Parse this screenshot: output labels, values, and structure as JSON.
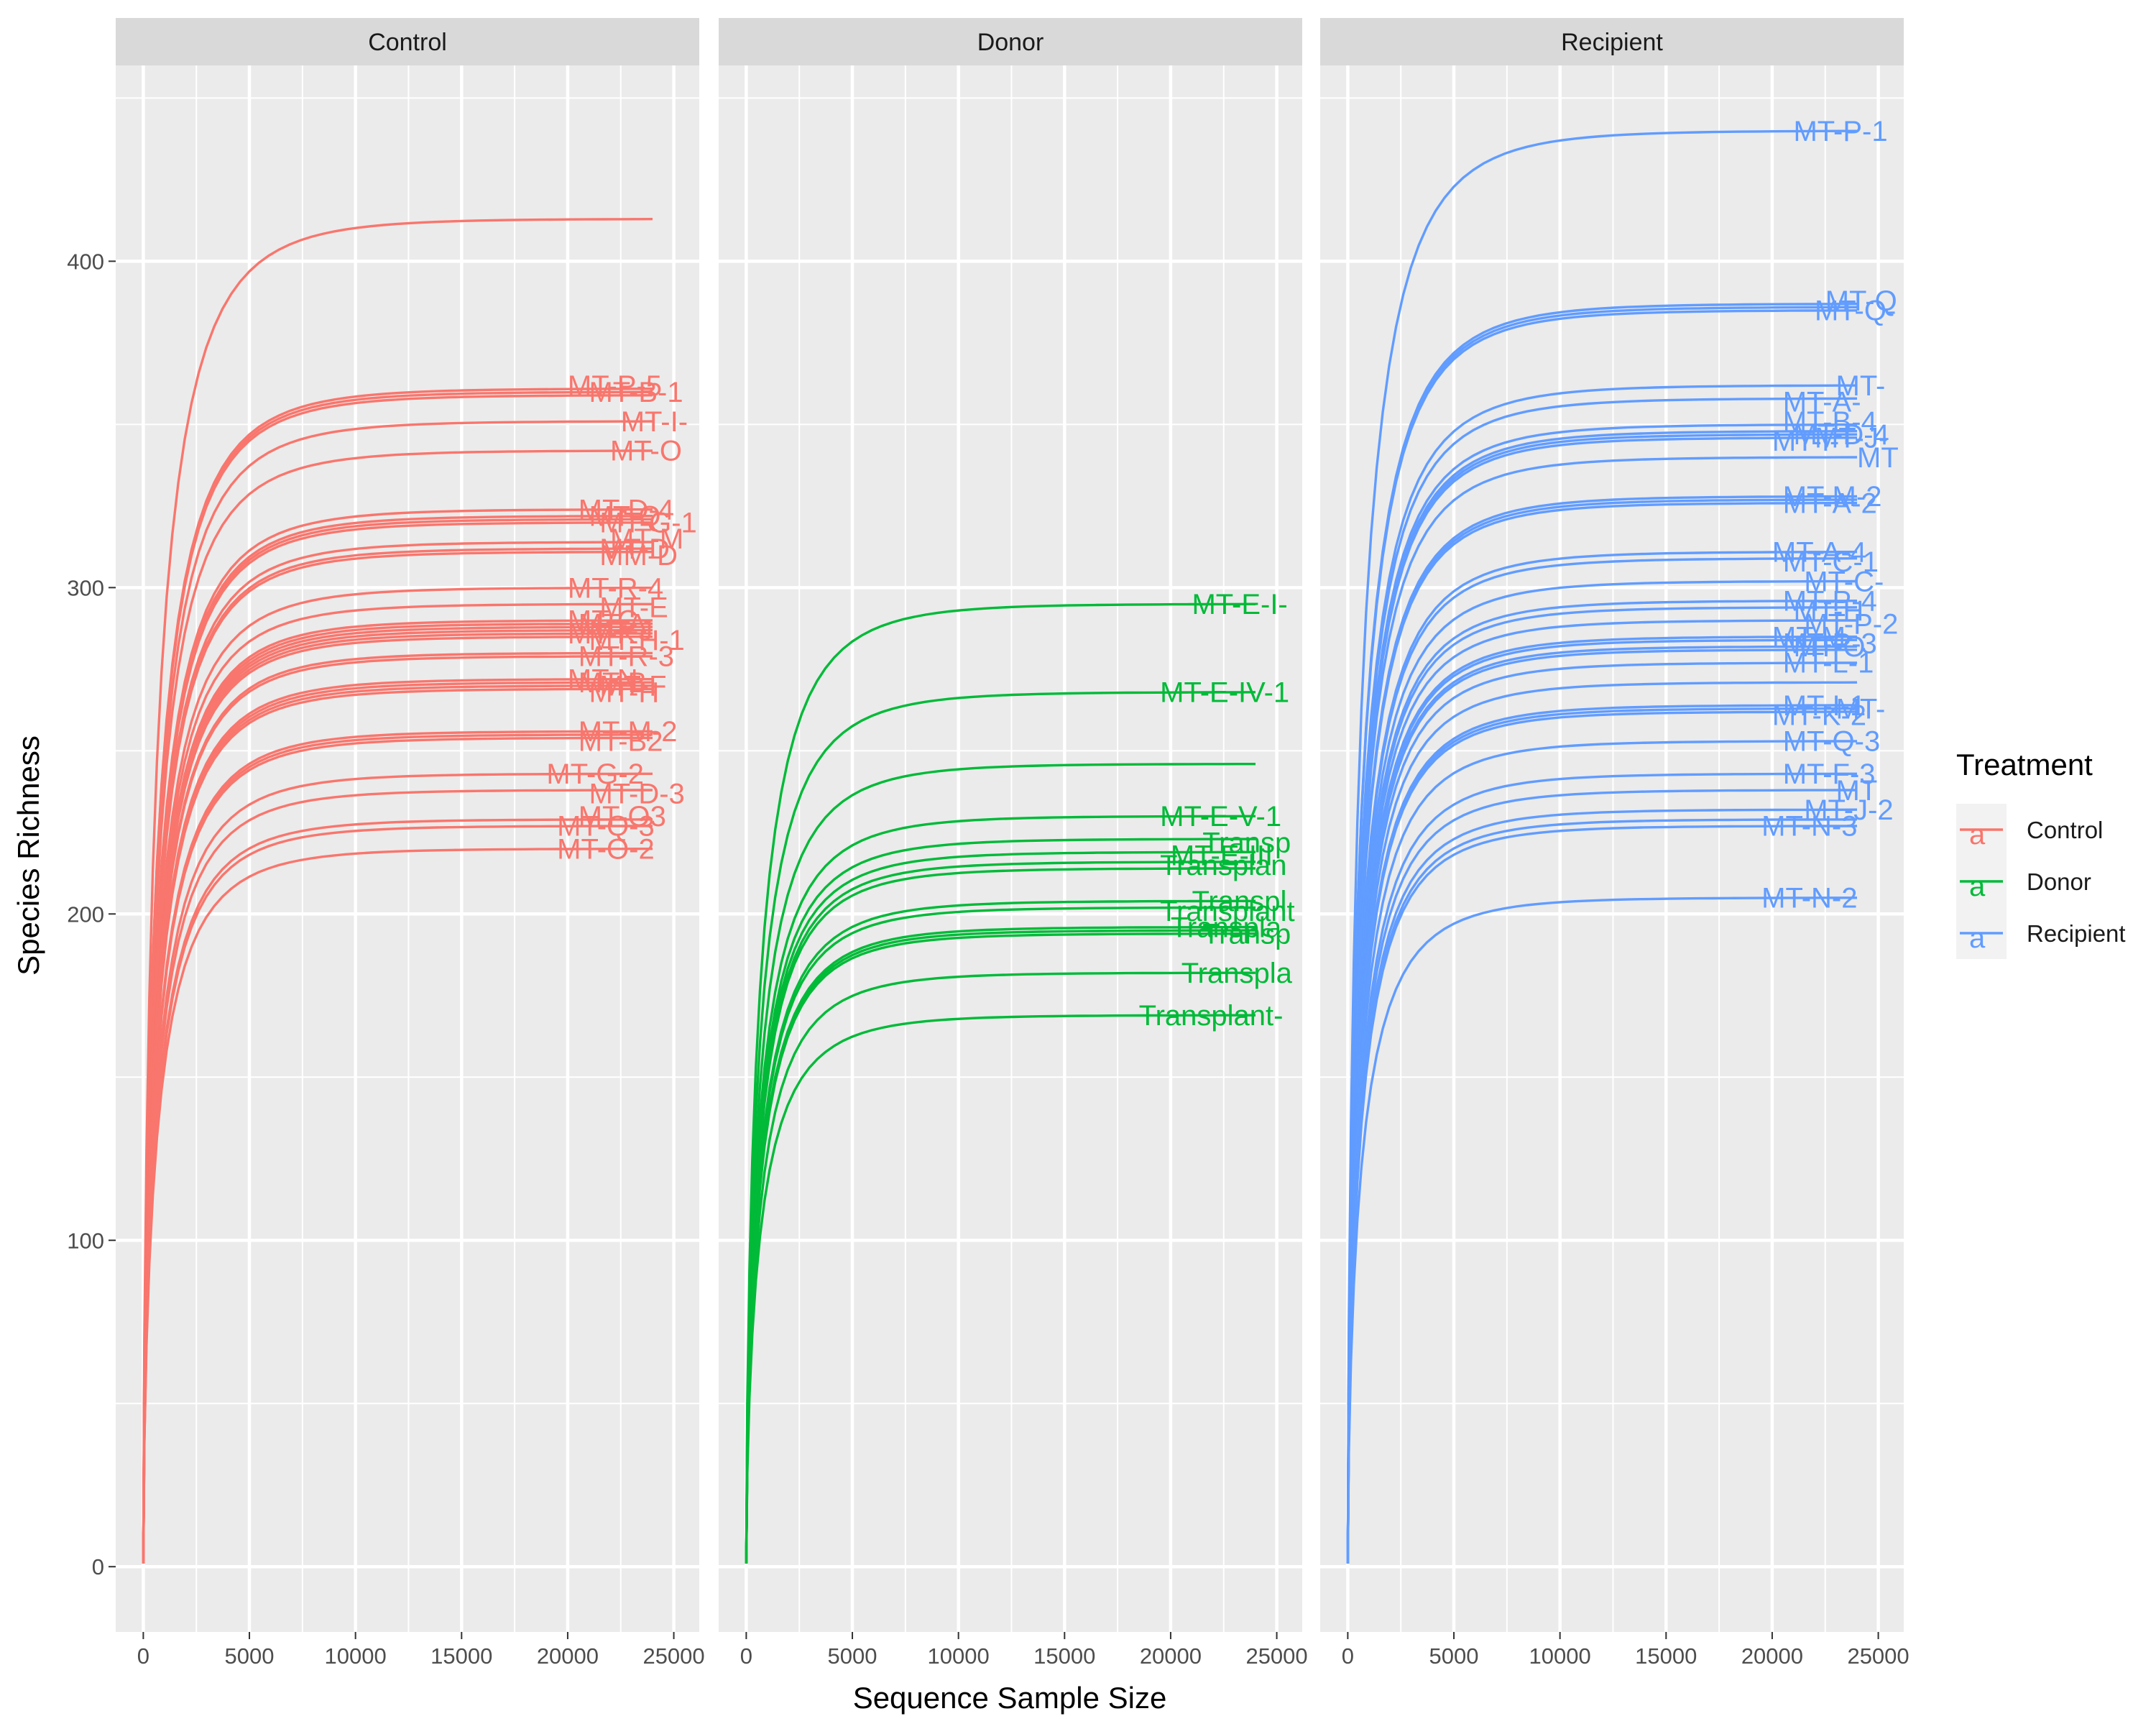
{
  "chart_data": {
    "type": "line",
    "xlabel": "Sequence Sample Size",
    "ylabel": "Species Richness",
    "xlim": [
      -1300,
      26200
    ],
    "ylim": [
      -20,
      460
    ],
    "x_ticks": [
      0,
      5000,
      10000,
      15000,
      20000,
      25000
    ],
    "y_ticks": [
      0,
      100,
      200,
      300,
      400
    ],
    "grid": true,
    "legend": {
      "title": "Treatment",
      "position": "right",
      "key_glyph": "a",
      "entries": [
        {
          "name": "Control",
          "color": "#F8766D"
        },
        {
          "name": "Donor",
          "color": "#00BA38"
        },
        {
          "name": "Recipient",
          "color": "#619CFF"
        }
      ]
    },
    "panels": [
      {
        "facet": "Control",
        "color": "#F8766D",
        "series": [
          {
            "final": 413,
            "end_x": 24000,
            "label": "",
            "label_x": 0,
            "label_y": 0
          },
          {
            "final": 361,
            "end_x": 24000,
            "label": "MT-P-5",
            "label_x": 20000,
            "label_y": 362
          },
          {
            "final": 360,
            "end_x": 24000,
            "label": "MT-B-1",
            "label_x": 21000,
            "label_y": 360
          },
          {
            "final": 359,
            "end_x": 24000,
            "label": "",
            "label_x": 0,
            "label_y": 0
          },
          {
            "final": 351,
            "end_x": 24000,
            "label": "MT-I-",
            "label_x": 22500,
            "label_y": 351
          },
          {
            "final": 342,
            "end_x": 24000,
            "label": "MT-O",
            "label_x": 22000,
            "label_y": 342
          },
          {
            "final": 324,
            "end_x": 24000,
            "label": "MT-D-4",
            "label_x": 20500,
            "label_y": 324
          },
          {
            "final": 322,
            "end_x": 24000,
            "label": "MT-Q",
            "label_x": 21000,
            "label_y": 322
          },
          {
            "final": 321,
            "end_x": 24000,
            "label": "MT-G-1",
            "label_x": 21500,
            "label_y": 320
          },
          {
            "final": 320,
            "end_x": 24000,
            "label": "",
            "label_x": 0,
            "label_y": 0
          },
          {
            "final": 314,
            "end_x": 24000,
            "label": "MT-M",
            "label_x": 22000,
            "label_y": 315
          },
          {
            "final": 312,
            "end_x": 24000,
            "label": "MM-D",
            "label_x": 21500,
            "label_y": 310
          },
          {
            "final": 311,
            "end_x": 24000,
            "label": "MT-D",
            "label_x": 21500,
            "label_y": 312
          },
          {
            "final": 300,
            "end_x": 24000,
            "label": "MT-R-4",
            "label_x": 20000,
            "label_y": 300
          },
          {
            "final": 295,
            "end_x": 24000,
            "label": "MT-E",
            "label_x": 21500,
            "label_y": 294
          },
          {
            "final": 290,
            "end_x": 24000,
            "label": "MT-C",
            "label_x": 20000,
            "label_y": 290
          },
          {
            "final": 289,
            "end_x": 24000,
            "label": "MT-A",
            "label_x": 20500,
            "label_y": 289
          },
          {
            "final": 288,
            "end_x": 24000,
            "label": "MT-J",
            "label_x": 21000,
            "label_y": 287
          },
          {
            "final": 287,
            "end_x": 24000,
            "label": "MT-K",
            "label_x": 20000,
            "label_y": 286
          },
          {
            "final": 286,
            "end_x": 24000,
            "label": "MT-H-1",
            "label_x": 21000,
            "label_y": 284
          },
          {
            "final": 285,
            "end_x": 24000,
            "label": "",
            "label_x": 0,
            "label_y": 0
          },
          {
            "final": 280,
            "end_x": 24000,
            "label": "MT-R-3",
            "label_x": 20500,
            "label_y": 279
          },
          {
            "final": 279,
            "end_x": 24000,
            "label": "",
            "label_x": 0,
            "label_y": 0
          },
          {
            "final": 272,
            "end_x": 24000,
            "label": "MT-N",
            "label_x": 20000,
            "label_y": 272
          },
          {
            "final": 271,
            "end_x": 24000,
            "label": "MT-B",
            "label_x": 20500,
            "label_y": 271
          },
          {
            "final": 270,
            "end_x": 24000,
            "label": "MT-F",
            "label_x": 21500,
            "label_y": 270
          },
          {
            "final": 269,
            "end_x": 24000,
            "label": "MT-H",
            "label_x": 21000,
            "label_y": 268
          },
          {
            "final": 256,
            "end_x": 24000,
            "label": "MT-M-2",
            "label_x": 20500,
            "label_y": 256
          },
          {
            "final": 255,
            "end_x": 24000,
            "label": "MT-B2",
            "label_x": 20500,
            "label_y": 253
          },
          {
            "final": 254,
            "end_x": 24000,
            "label": "",
            "label_x": 0,
            "label_y": 0
          },
          {
            "final": 243,
            "end_x": 24000,
            "label": "MT-G-2",
            "label_x": 19000,
            "label_y": 243
          },
          {
            "final": 238,
            "end_x": 24000,
            "label": "MT-D-3",
            "label_x": 21000,
            "label_y": 237
          },
          {
            "final": 229,
            "end_x": 24000,
            "label": "MT-O3",
            "label_x": 20500,
            "label_y": 230
          },
          {
            "final": 227,
            "end_x": 24000,
            "label": "MT-Q-3",
            "label_x": 19500,
            "label_y": 227
          },
          {
            "final": 220,
            "end_x": 24000,
            "label": "MT-O-2",
            "label_x": 19500,
            "label_y": 220
          }
        ]
      },
      {
        "facet": "Donor",
        "color": "#00BA38",
        "series": [
          {
            "final": 295,
            "end_x": 24000,
            "label": "MT-E-I-",
            "label_x": 21000,
            "label_y": 295
          },
          {
            "final": 268,
            "end_x": 24000,
            "label": "MT-E-IV-1",
            "label_x": 19500,
            "label_y": 268
          },
          {
            "final": 246,
            "end_x": 24000,
            "label": "",
            "label_x": 0,
            "label_y": 0
          },
          {
            "final": 230,
            "end_x": 24000,
            "label": "MT-E-V-1",
            "label_x": 19500,
            "label_y": 230
          },
          {
            "final": 223,
            "end_x": 24000,
            "label": "Transp",
            "label_x": 21500,
            "label_y": 222
          },
          {
            "final": 219,
            "end_x": 24000,
            "label": "MT-E-III",
            "label_x": 20000,
            "label_y": 218
          },
          {
            "final": 216,
            "end_x": 24000,
            "label": "Transplan",
            "label_x": 19500,
            "label_y": 215
          },
          {
            "final": 214,
            "end_x": 24000,
            "label": "",
            "label_x": 0,
            "label_y": 0
          },
          {
            "final": 204,
            "end_x": 24000,
            "label": "Transpl",
            "label_x": 21000,
            "label_y": 204
          },
          {
            "final": 202,
            "end_x": 24000,
            "label": "Transplant",
            "label_x": 19500,
            "label_y": 201
          },
          {
            "final": 196,
            "end_x": 24000,
            "label": "Transpla",
            "label_x": 20000,
            "label_y": 196
          },
          {
            "final": 195,
            "end_x": 24000,
            "label": "Transp",
            "label_x": 21500,
            "label_y": 194
          },
          {
            "final": 194,
            "end_x": 24000,
            "label": "",
            "label_x": 0,
            "label_y": 0
          },
          {
            "final": 182,
            "end_x": 24000,
            "label": "Transpla",
            "label_x": 20500,
            "label_y": 182
          },
          {
            "final": 169,
            "end_x": 24000,
            "label": "Transplant-",
            "label_x": 18500,
            "label_y": 169
          }
        ]
      },
      {
        "facet": "Recipient",
        "color": "#619CFF",
        "series": [
          {
            "final": 440,
            "end_x": 24000,
            "label": "MT-P-1",
            "label_x": 21000,
            "label_y": 440
          },
          {
            "final": 387,
            "end_x": 24000,
            "label": "MT-Q",
            "label_x": 22500,
            "label_y": 388
          },
          {
            "final": 386,
            "end_x": 24000,
            "label": "MT-Q-",
            "label_x": 22000,
            "label_y": 385
          },
          {
            "final": 385,
            "end_x": 24000,
            "label": "",
            "label_x": 0,
            "label_y": 0
          },
          {
            "final": 362,
            "end_x": 24000,
            "label": "MT-",
            "label_x": 23000,
            "label_y": 362
          },
          {
            "final": 358,
            "end_x": 24000,
            "label": "MT-A-",
            "label_x": 20500,
            "label_y": 357
          },
          {
            "final": 350,
            "end_x": 24000,
            "label": "MT-B-4",
            "label_x": 20500,
            "label_y": 351
          },
          {
            "final": 348,
            "end_x": 24000,
            "label": "MT-D-4",
            "label_x": 21000,
            "label_y": 347
          },
          {
            "final": 347,
            "end_x": 24000,
            "label": "MT-J-",
            "label_x": 22000,
            "label_y": 346
          },
          {
            "final": 346,
            "end_x": 24000,
            "label": "MT-I-",
            "label_x": 20000,
            "label_y": 345
          },
          {
            "final": 340,
            "end_x": 24000,
            "label": "MT",
            "label_x": 24000,
            "label_y": 340
          },
          {
            "final": 328,
            "end_x": 24000,
            "label": "MT-M-2",
            "label_x": 20500,
            "label_y": 328
          },
          {
            "final": 327,
            "end_x": 24000,
            "label": "MT-A-2",
            "label_x": 20500,
            "label_y": 326
          },
          {
            "final": 326,
            "end_x": 24000,
            "label": "",
            "label_x": 0,
            "label_y": 0
          },
          {
            "final": 311,
            "end_x": 24000,
            "label": "MT-A-4",
            "label_x": 20000,
            "label_y": 311
          },
          {
            "final": 309,
            "end_x": 24000,
            "label": "MT-C-1",
            "label_x": 20500,
            "label_y": 308
          },
          {
            "final": 302,
            "end_x": 24000,
            "label": "MT-C-",
            "label_x": 21500,
            "label_y": 302
          },
          {
            "final": 296,
            "end_x": 24000,
            "label": "MT-P-4",
            "label_x": 20500,
            "label_y": 296
          },
          {
            "final": 294,
            "end_x": 24000,
            "label": "MT-H",
            "label_x": 21000,
            "label_y": 293
          },
          {
            "final": 290,
            "end_x": 24000,
            "label": "MT-P-2",
            "label_x": 21500,
            "label_y": 289
          },
          {
            "final": 285,
            "end_x": 24000,
            "label": "MT-M",
            "label_x": 20000,
            "label_y": 285
          },
          {
            "final": 284,
            "end_x": 24000,
            "label": "MT-P-3",
            "label_x": 20500,
            "label_y": 283
          },
          {
            "final": 282,
            "end_x": 24000,
            "label": "MT-O",
            "label_x": 21000,
            "label_y": 282
          },
          {
            "final": 281,
            "end_x": 24000,
            "label": "",
            "label_x": 0,
            "label_y": 0
          },
          {
            "final": 277,
            "end_x": 24000,
            "label": "MT-L-1",
            "label_x": 20500,
            "label_y": 277
          },
          {
            "final": 271,
            "end_x": 24000,
            "label": "",
            "label_x": 0,
            "label_y": 0
          },
          {
            "final": 264,
            "end_x": 24000,
            "label": "MT-I-1",
            "label_x": 20500,
            "label_y": 264
          },
          {
            "final": 263,
            "end_x": 24000,
            "label": "MT-K-2",
            "label_x": 20000,
            "label_y": 261
          },
          {
            "final": 262,
            "end_x": 24000,
            "label": "MT-",
            "label_x": 23000,
            "label_y": 263
          },
          {
            "final": 253,
            "end_x": 24000,
            "label": "MT-Q-3",
            "label_x": 20500,
            "label_y": 253
          },
          {
            "final": 243,
            "end_x": 24000,
            "label": "MT-F-3",
            "label_x": 20500,
            "label_y": 243
          },
          {
            "final": 238,
            "end_x": 24000,
            "label": "MT",
            "label_x": 23000,
            "label_y": 238
          },
          {
            "final": 232,
            "end_x": 24000,
            "label": "MT-J-2",
            "label_x": 21500,
            "label_y": 232
          },
          {
            "final": 229,
            "end_x": 24000,
            "label": "",
            "label_x": 0,
            "label_y": 0
          },
          {
            "final": 227,
            "end_x": 24000,
            "label": "MT-N-3",
            "label_x": 19500,
            "label_y": 227
          },
          {
            "final": 205,
            "end_x": 24000,
            "label": "MT-N-2",
            "label_x": 19500,
            "label_y": 205
          }
        ]
      }
    ]
  }
}
